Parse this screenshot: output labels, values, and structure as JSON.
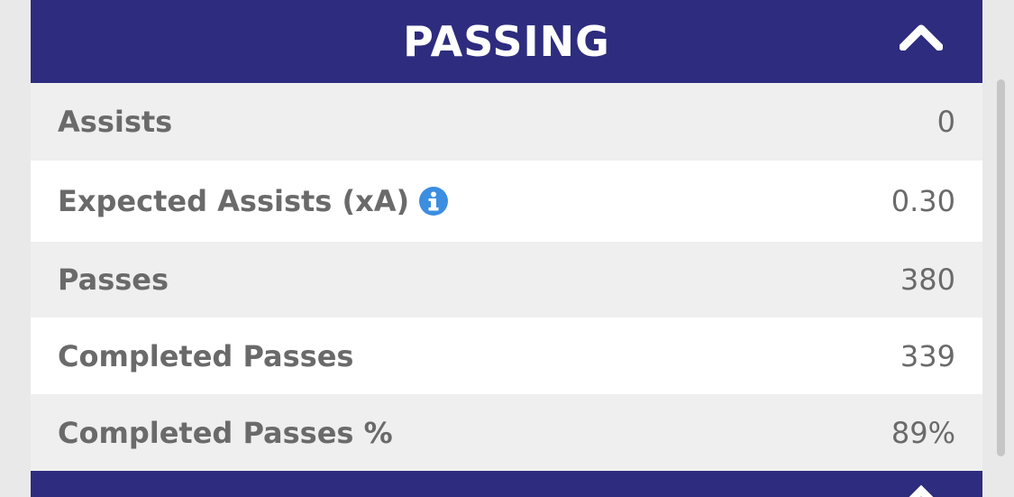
{
  "header": {
    "title": "PASSING"
  },
  "rows": [
    {
      "label": "Assists",
      "value": "0"
    },
    {
      "label": "Expected Assists (xA)",
      "value": "0.30"
    },
    {
      "label": "Passes",
      "value": "380"
    },
    {
      "label": "Completed Passes",
      "value": "339"
    },
    {
      "label": "Completed Passes %",
      "value": "89%"
    }
  ]
}
